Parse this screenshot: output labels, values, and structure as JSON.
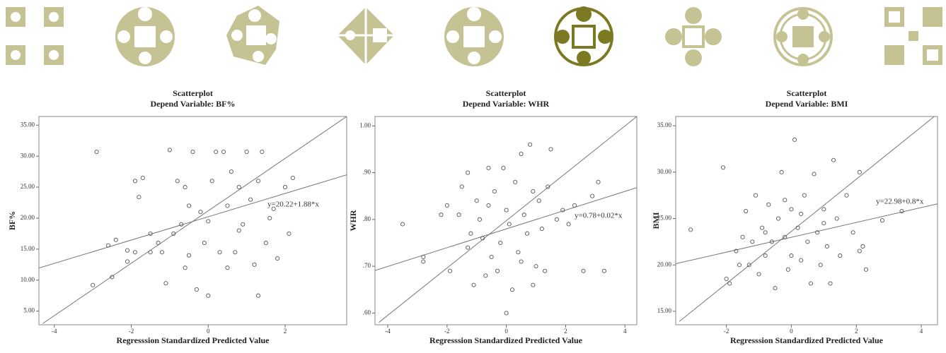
{
  "chart_data": [
    {
      "type": "scatter",
      "title": "Scatterplot",
      "subtitle": "Depend Variable: BF%",
      "x_label": "Regresssion Standardized Predicted Value",
      "y_label": "BF%",
      "annotation": "y=20.22+1.88*x",
      "xlim": [
        -4.4,
        3.6
      ],
      "ylim": [
        2.8,
        36.4
      ],
      "xticks": [
        -4,
        -2,
        0,
        2
      ],
      "yticks": [
        {
          "value": 5,
          "label": "5.00"
        },
        {
          "value": 10,
          "label": "10.00"
        },
        {
          "value": 15,
          "label": "15.00"
        },
        {
          "value": 20,
          "label": "20.00"
        },
        {
          "value": 25,
          "label": "25.00"
        },
        {
          "value": 30,
          "label": "30.00"
        },
        {
          "value": 35,
          "label": "35.00"
        }
      ],
      "x": [
        -2.9,
        -2.6,
        -2.5,
        -2.4,
        -2.1,
        -1.9,
        -1.9,
        -1.8,
        -1.7,
        -1.5,
        -1.3,
        -1.2,
        -1.1,
        -1,
        -0.9,
        -0.8,
        -0.7,
        -0.6,
        -0.6,
        -0.5,
        -0.4,
        -0.3,
        -0.2,
        -0.1,
        0,
        0.1,
        0.2,
        0.3,
        0.4,
        0.5,
        0.6,
        0.7,
        0.8,
        0.9,
        1,
        1.1,
        1.2,
        1.3,
        1.4,
        1.5,
        1.6,
        1.8,
        2,
        2.1,
        2.2,
        1.3,
        0,
        -3,
        0.5,
        -0.5,
        1.7,
        0.8,
        -1.5,
        -2.1
      ],
      "y": [
        30.7,
        15.6,
        10.5,
        16.5,
        13,
        26,
        14.5,
        23.4,
        26.5,
        17.5,
        16,
        14.5,
        9.5,
        31,
        17.5,
        26,
        19,
        25,
        12,
        22,
        30.7,
        8.5,
        21,
        16,
        19.5,
        26,
        30.7,
        14.5,
        30.7,
        22,
        27.5,
        14.5,
        25,
        19,
        30.7,
        23,
        12.5,
        26,
        30.7,
        16,
        20,
        13.5,
        25,
        17.5,
        26.5,
        7.5,
        7.5,
        9.2,
        12,
        14,
        21.5,
        18,
        14.5,
        14.8
      ],
      "lines": [
        {
          "x": [
            -4.4,
            3.6
          ],
          "y": [
            11.95,
            26.99
          ]
        },
        {
          "x": [
            -4.3,
            3.6
          ],
          "y": [
            3,
            36.4
          ]
        }
      ]
    },
    {
      "type": "scatter",
      "title": "Scatterplot",
      "subtitle": "Depend Variable: WHR",
      "x_label": "Regresssion Standardized Predicted Value",
      "y_label": "WHR",
      "annotation": "y=0.78+0.02*x",
      "xlim": [
        -4.43,
        4.4
      ],
      "ylim": [
        0.575,
        1.02
      ],
      "xticks": [
        -4,
        -2,
        0,
        2,
        4
      ],
      "yticks": [
        {
          "value": 0.6,
          "label": ".60"
        },
        {
          "value": 0.7,
          "label": ".70"
        },
        {
          "value": 0.8,
          "label": ".80"
        },
        {
          "value": 0.9,
          "label": ".90"
        },
        {
          "value": 1.0,
          "label": "1.00"
        }
      ],
      "x": [
        -3.5,
        -2.8,
        -2.8,
        -2.2,
        -2,
        -1.9,
        -1.6,
        -1.5,
        -1.3,
        -1.3,
        -1.1,
        -1,
        -0.9,
        -0.8,
        -0.7,
        -0.6,
        -0.5,
        -0.4,
        -0.3,
        -0.2,
        -0.1,
        0,
        0,
        0.1,
        0.2,
        0.3,
        0.4,
        0.5,
        0.6,
        0.7,
        0.8,
        0.9,
        1,
        1.1,
        1.2,
        1.3,
        1.4,
        1.5,
        1.7,
        1.9,
        2.1,
        2.3,
        2.6,
        2.9,
        3.1,
        3.3,
        -1.2,
        0.5,
        -0.6,
        0.9
      ],
      "y": [
        0.79,
        0.72,
        0.71,
        0.81,
        0.83,
        0.69,
        0.81,
        0.87,
        0.9,
        0.74,
        0.66,
        0.84,
        0.8,
        0.76,
        0.68,
        0.91,
        0.72,
        0.86,
        0.69,
        0.75,
        0.91,
        0.6,
        0.82,
        0.79,
        0.65,
        0.88,
        0.73,
        0.94,
        0.81,
        0.77,
        0.96,
        0.86,
        0.7,
        0.84,
        0.78,
        0.69,
        0.87,
        0.95,
        0.8,
        0.82,
        0.79,
        0.83,
        0.69,
        0.85,
        0.88,
        0.69,
        0.77,
        0.71,
        0.83,
        0.66
      ],
      "lines": [
        {
          "x": [
            -4.43,
            4.4
          ],
          "y": [
            0.691,
            0.868
          ]
        },
        {
          "x": [
            -4.3,
            4.4
          ],
          "y": [
            0.58,
            1.02
          ]
        }
      ]
    },
    {
      "type": "scatter",
      "title": "Scatterplot",
      "subtitle": "Depend Variable: BMI",
      "x_label": "Regresssion Standardized Predicted Value",
      "y_label": "BMI",
      "annotation": "y=22.98+0.8*x",
      "xlim": [
        -3.56,
        4.5
      ],
      "ylim": [
        13.55,
        36
      ],
      "xticks": [
        -2,
        0,
        2,
        4
      ],
      "yticks": [
        {
          "value": 15,
          "label": "15.00"
        },
        {
          "value": 20,
          "label": "20.00"
        },
        {
          "value": 25,
          "label": "25.00"
        },
        {
          "value": 30,
          "label": "30.00"
        },
        {
          "value": 35,
          "label": "35.00"
        }
      ],
      "x": [
        -3.1,
        -2.1,
        -2,
        -1.9,
        -1.7,
        -1.5,
        -1.4,
        -1.3,
        -1.2,
        -1.1,
        -1,
        -0.9,
        -0.8,
        -0.7,
        -0.6,
        -0.5,
        -0.4,
        -0.3,
        -0.2,
        -0.1,
        0,
        0,
        0.1,
        0.2,
        0.3,
        0.4,
        0.5,
        0.6,
        0.7,
        0.8,
        0.9,
        1,
        1.1,
        1.2,
        1.3,
        1.4,
        1.5,
        1.7,
        1.9,
        2.1,
        2.2,
        2.3,
        2.1,
        2.8,
        3.4,
        -0.8,
        0.3,
        -1.6,
        1,
        -0.2
      ],
      "y": [
        23.8,
        30.5,
        18.5,
        18,
        21.5,
        23,
        25.8,
        20,
        22.5,
        27.5,
        19,
        24,
        21,
        26.5,
        22.5,
        17.5,
        25,
        30,
        23,
        19.5,
        26,
        21,
        33.5,
        24,
        20.5,
        27.5,
        22.5,
        18,
        29.8,
        23.5,
        20,
        26,
        22,
        18,
        31.3,
        25,
        21,
        27.5,
        23.5,
        30,
        22,
        19.5,
        21.5,
        24.8,
        25.8,
        23.5,
        25.5,
        20,
        24.5,
        27
      ],
      "lines": [
        {
          "x": [
            -3.56,
            4.5
          ],
          "y": [
            20.13,
            26.58
          ]
        },
        {
          "x": [
            -3.45,
            4.4
          ],
          "y": [
            13.9,
            36
          ]
        }
      ]
    }
  ]
}
